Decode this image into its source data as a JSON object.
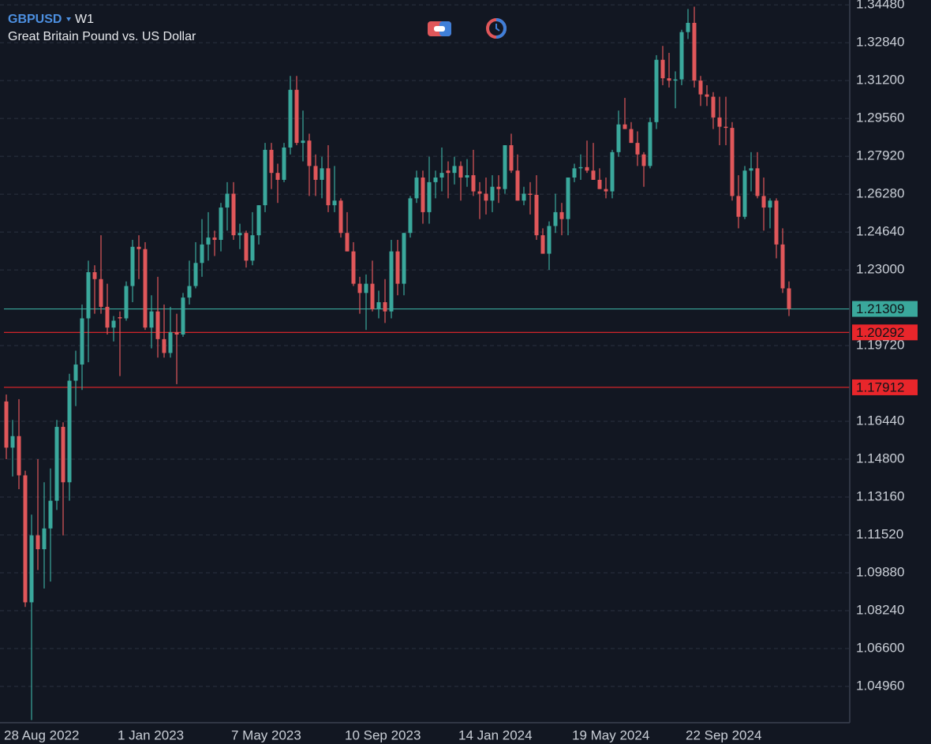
{
  "chart_data": {
    "type": "candlestick",
    "symbol": "GBPUSD",
    "timeframe": "W1",
    "subtitle": "Great Britain Pound vs. US Dollar",
    "up_color": "#3aa89c",
    "down_color": "#e0575a",
    "grid": true,
    "ylim": [
      1.0342,
      1.3469
    ],
    "yticks": [
      {
        "value": 1.3448,
        "label": "1.34480"
      },
      {
        "value": 1.3284,
        "label": "1.32840"
      },
      {
        "value": 1.312,
        "label": "1.31200"
      },
      {
        "value": 1.2956,
        "label": "1.29560"
      },
      {
        "value": 1.2792,
        "label": "1.27920"
      },
      {
        "value": 1.2628,
        "label": "1.26280"
      },
      {
        "value": 1.2464,
        "label": "1.24640"
      },
      {
        "value": 1.23,
        "label": "1.23000"
      },
      {
        "value": 1.1972,
        "label": "1.19720"
      },
      {
        "value": 1.1644,
        "label": "1.16440"
      },
      {
        "value": 1.148,
        "label": "1.14800"
      },
      {
        "value": 1.1316,
        "label": "1.13160"
      },
      {
        "value": 1.1152,
        "label": "1.11520"
      },
      {
        "value": 1.0988,
        "label": "1.09880"
      },
      {
        "value": 1.0824,
        "label": "1.08240"
      },
      {
        "value": 1.066,
        "label": "1.06600"
      },
      {
        "value": 1.0496,
        "label": "1.04960"
      }
    ],
    "hlines": [
      {
        "value": 1.21309,
        "color": "#3aa89c"
      },
      {
        "value": 1.20292,
        "color": "#e8262b"
      },
      {
        "value": 1.17912,
        "color": "#e8262b"
      }
    ],
    "categories": [
      "28 Aug 2022",
      null,
      null,
      null,
      null,
      null,
      null,
      null,
      null,
      null,
      null,
      null,
      null,
      null,
      null,
      null,
      null,
      null,
      "1 Jan 2023",
      null,
      null,
      null,
      null,
      null,
      null,
      null,
      null,
      null,
      null,
      null,
      null,
      null,
      null,
      null,
      null,
      null,
      "7 May 2023",
      null,
      null,
      null,
      null,
      null,
      null,
      null,
      null,
      null,
      null,
      null,
      null,
      null,
      null,
      null,
      null,
      null,
      "10 Sep 2023",
      null,
      null,
      null,
      null,
      null,
      null,
      null,
      null,
      null,
      null,
      null,
      null,
      null,
      null,
      null,
      null,
      null,
      "14 Jan 2024",
      null,
      null,
      null,
      null,
      null,
      null,
      null,
      null,
      null,
      null,
      null,
      null,
      null,
      null,
      null,
      null,
      null,
      "19 May 2024",
      null,
      null,
      null,
      null,
      null,
      null,
      null,
      null,
      null,
      null,
      null,
      null,
      null,
      null,
      null,
      null,
      null,
      "22 Sep 2024",
      null,
      null,
      null,
      null,
      null,
      null,
      null,
      null,
      null,
      null,
      null,
      null,
      null,
      null,
      null,
      null
    ],
    "open": [
      1.173,
      1.153,
      1.158,
      1.141,
      1.086,
      1.115,
      1.109,
      1.118,
      1.13,
      1.162,
      1.138,
      1.182,
      1.189,
      1.209,
      1.229,
      1.226,
      1.214,
      1.205,
      1.2095,
      1.209,
      1.223,
      1.24,
      1.239,
      1.205,
      1.212,
      1.2,
      1.194,
      1.203,
      1.202,
      1.218,
      1.223,
      1.233,
      1.241,
      1.244,
      1.243,
      1.257,
      1.263,
      1.245,
      1.246,
      1.234,
      1.245,
      1.258,
      1.282,
      1.272,
      1.269,
      1.283,
      1.308,
      1.285,
      1.286,
      1.275,
      1.269,
      1.274,
      1.258,
      1.26,
      1.246,
      1.238,
      1.224,
      1.22,
      1.224,
      1.213,
      1.216,
      1.212,
      1.238,
      1.224,
      1.246,
      1.261,
      1.27,
      1.255,
      1.268,
      1.27,
      1.273,
      1.272,
      1.275,
      1.27,
      1.271,
      1.264,
      1.263,
      1.26,
      1.266,
      1.265,
      1.284,
      1.273,
      1.26,
      1.263,
      1.2625,
      1.245,
      1.237,
      1.249,
      1.255,
      1.252,
      1.27,
      1.274,
      1.2745,
      1.273,
      1.269,
      1.265,
      1.264,
      1.281,
      1.293,
      1.291,
      1.285,
      1.28,
      1.275,
      1.294,
      1.321,
      1.313,
      1.312,
      1.3125,
      1.333,
      1.337,
      1.312,
      1.306,
      1.305,
      1.296,
      1.292,
      1.2915,
      1.262,
      1.253,
      1.273,
      1.274,
      1.262,
      1.257,
      1.26,
      1.241,
      1.222
    ],
    "high": [
      1.176,
      1.165,
      1.174,
      1.143,
      1.124,
      1.148,
      1.138,
      1.144,
      1.165,
      1.164,
      1.185,
      1.195,
      1.215,
      1.234,
      1.232,
      1.245,
      1.224,
      1.21,
      1.212,
      1.225,
      1.243,
      1.245,
      1.242,
      1.219,
      1.227,
      1.215,
      1.214,
      1.211,
      1.22,
      1.234,
      1.242,
      1.252,
      1.255,
      1.247,
      1.259,
      1.268,
      1.268,
      1.25,
      1.247,
      1.255,
      1.258,
      1.285,
      1.285,
      1.276,
      1.285,
      1.314,
      1.314,
      1.299,
      1.289,
      1.28,
      1.279,
      1.284,
      1.275,
      1.261,
      1.255,
      1.242,
      1.227,
      1.228,
      1.234,
      1.221,
      1.226,
      1.243,
      1.243,
      1.246,
      1.262,
      1.273,
      1.273,
      1.279,
      1.273,
      1.283,
      1.277,
      1.279,
      1.277,
      1.278,
      1.282,
      1.268,
      1.27,
      1.271,
      1.271,
      1.284,
      1.289,
      1.28,
      1.266,
      1.268,
      1.271,
      1.248,
      1.251,
      1.263,
      1.259,
      1.27,
      1.276,
      1.28,
      1.286,
      1.285,
      1.274,
      1.27,
      1.282,
      1.299,
      1.3045,
      1.294,
      1.29,
      1.281,
      1.296,
      1.323,
      1.327,
      1.324,
      1.316,
      1.334,
      1.343,
      1.344,
      1.314,
      1.31,
      1.307,
      1.305,
      1.305,
      1.294,
      1.271,
      1.275,
      1.281,
      1.281,
      1.27,
      1.261,
      1.261,
      1.248,
      1.225
    ],
    "low": [
      1.148,
      1.1405,
      1.135,
      1.084,
      1.035,
      1.1,
      1.092,
      1.095,
      1.126,
      1.115,
      1.13,
      1.171,
      1.178,
      1.19,
      1.211,
      1.211,
      1.202,
      1.199,
      1.184,
      1.208,
      1.216,
      1.226,
      1.204,
      1.196,
      1.192,
      1.192,
      1.192,
      1.1805,
      1.201,
      1.215,
      1.222,
      1.227,
      1.234,
      1.236,
      1.238,
      1.247,
      1.243,
      1.239,
      1.231,
      1.232,
      1.241,
      1.255,
      1.265,
      1.259,
      1.268,
      1.28,
      1.284,
      1.277,
      1.262,
      1.262,
      1.261,
      1.255,
      1.255,
      1.244,
      1.238,
      1.223,
      1.211,
      1.204,
      1.212,
      1.209,
      1.207,
      1.209,
      1.219,
      1.219,
      1.244,
      1.259,
      1.25,
      1.25,
      1.261,
      1.264,
      1.261,
      1.267,
      1.26,
      1.266,
      1.262,
      1.252,
      1.254,
      1.255,
      1.259,
      1.263,
      1.272,
      1.26,
      1.258,
      1.254,
      1.243,
      1.237,
      1.23,
      1.246,
      1.245,
      1.245,
      1.268,
      1.269,
      1.272,
      1.269,
      1.265,
      1.261,
      1.261,
      1.279,
      1.291,
      1.285,
      1.275,
      1.266,
      1.274,
      1.291,
      1.31,
      1.309,
      1.3,
      1.31,
      1.33,
      1.309,
      1.301,
      1.301,
      1.291,
      1.284,
      1.284,
      1.26,
      1.248,
      1.252,
      1.264,
      1.261,
      1.247,
      1.248,
      1.235,
      1.22,
      1.21
    ],
    "close": [
      1.153,
      1.158,
      1.141,
      1.086,
      1.115,
      1.109,
      1.118,
      1.13,
      1.162,
      1.138,
      1.182,
      1.189,
      1.209,
      1.229,
      1.226,
      1.214,
      1.205,
      1.208,
      1.209,
      1.223,
      1.24,
      1.239,
      1.205,
      1.212,
      1.2,
      1.194,
      1.203,
      1.202,
      1.218,
      1.223,
      1.233,
      1.241,
      1.244,
      1.243,
      1.257,
      1.263,
      1.245,
      1.246,
      1.234,
      1.245,
      1.258,
      1.282,
      1.272,
      1.269,
      1.283,
      1.308,
      1.285,
      1.286,
      1.275,
      1.269,
      1.274,
      1.258,
      1.26,
      1.246,
      1.238,
      1.224,
      1.22,
      1.224,
      1.213,
      1.216,
      1.212,
      1.238,
      1.224,
      1.246,
      1.261,
      1.27,
      1.255,
      1.268,
      1.27,
      1.272,
      1.272,
      1.275,
      1.27,
      1.271,
      1.264,
      1.263,
      1.26,
      1.266,
      1.265,
      1.284,
      1.273,
      1.26,
      1.263,
      1.2625,
      1.245,
      1.237,
      1.249,
      1.255,
      1.252,
      1.27,
      1.274,
      1.2745,
      1.273,
      1.269,
      1.265,
      1.264,
      1.281,
      1.293,
      1.291,
      1.285,
      1.28,
      1.275,
      1.294,
      1.321,
      1.313,
      1.312,
      1.3125,
      1.333,
      1.337,
      1.312,
      1.306,
      1.305,
      1.296,
      1.292,
      1.2915,
      1.262,
      1.253,
      1.273,
      1.274,
      1.262,
      1.257,
      1.26,
      1.241,
      1.222,
      1.2131
    ]
  }
}
